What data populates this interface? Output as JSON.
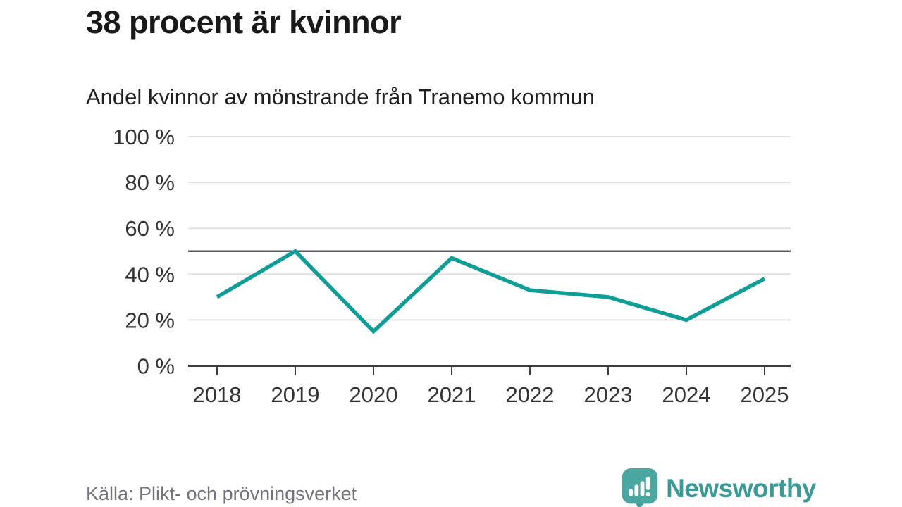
{
  "page": {
    "title": "38 procent är kvinnor",
    "subtitle": "Andel kvinnor av mönstrande från Tranemo kommun",
    "source": "Källa: Plikt- och prövningsverket",
    "brand": {
      "name": "Newsworthy"
    }
  },
  "colors": {
    "title": "#191919",
    "line": "#0f9e96",
    "grid": "#e2e2e2",
    "axis": "#3d3d3d",
    "reference_line": "#5e5e64",
    "tick_label": "#333333",
    "source_text": "#73737b",
    "brand_teal": "#4aa6a0",
    "brand_tail": "#409c96",
    "brand_text": "#3a9b96",
    "background": "#ffffff"
  },
  "chart_data": {
    "type": "line",
    "title": "38 procent är kvinnor",
    "subtitle": "Andel kvinnor av mönstrande från Tranemo kommun",
    "categories": [
      "2018",
      "2019",
      "2020",
      "2021",
      "2022",
      "2023",
      "2024",
      "2025"
    ],
    "series": [
      {
        "name": "Andel kvinnor av mönstrande",
        "values": [
          30,
          50,
          15,
          47,
          33,
          30,
          20,
          38
        ]
      }
    ],
    "unit": "%",
    "xlabel": "",
    "ylabel": "",
    "ylim": [
      0,
      100
    ],
    "yticks": [
      0,
      20,
      40,
      60,
      80,
      100
    ],
    "ytick_labels": [
      "0 %",
      "20 %",
      "40 %",
      "60 %",
      "80 %",
      "100 %"
    ],
    "reference_line": 50,
    "grid": "horizontal",
    "legend": "none",
    "source": "Källa: Plikt- och prövningsverket"
  }
}
